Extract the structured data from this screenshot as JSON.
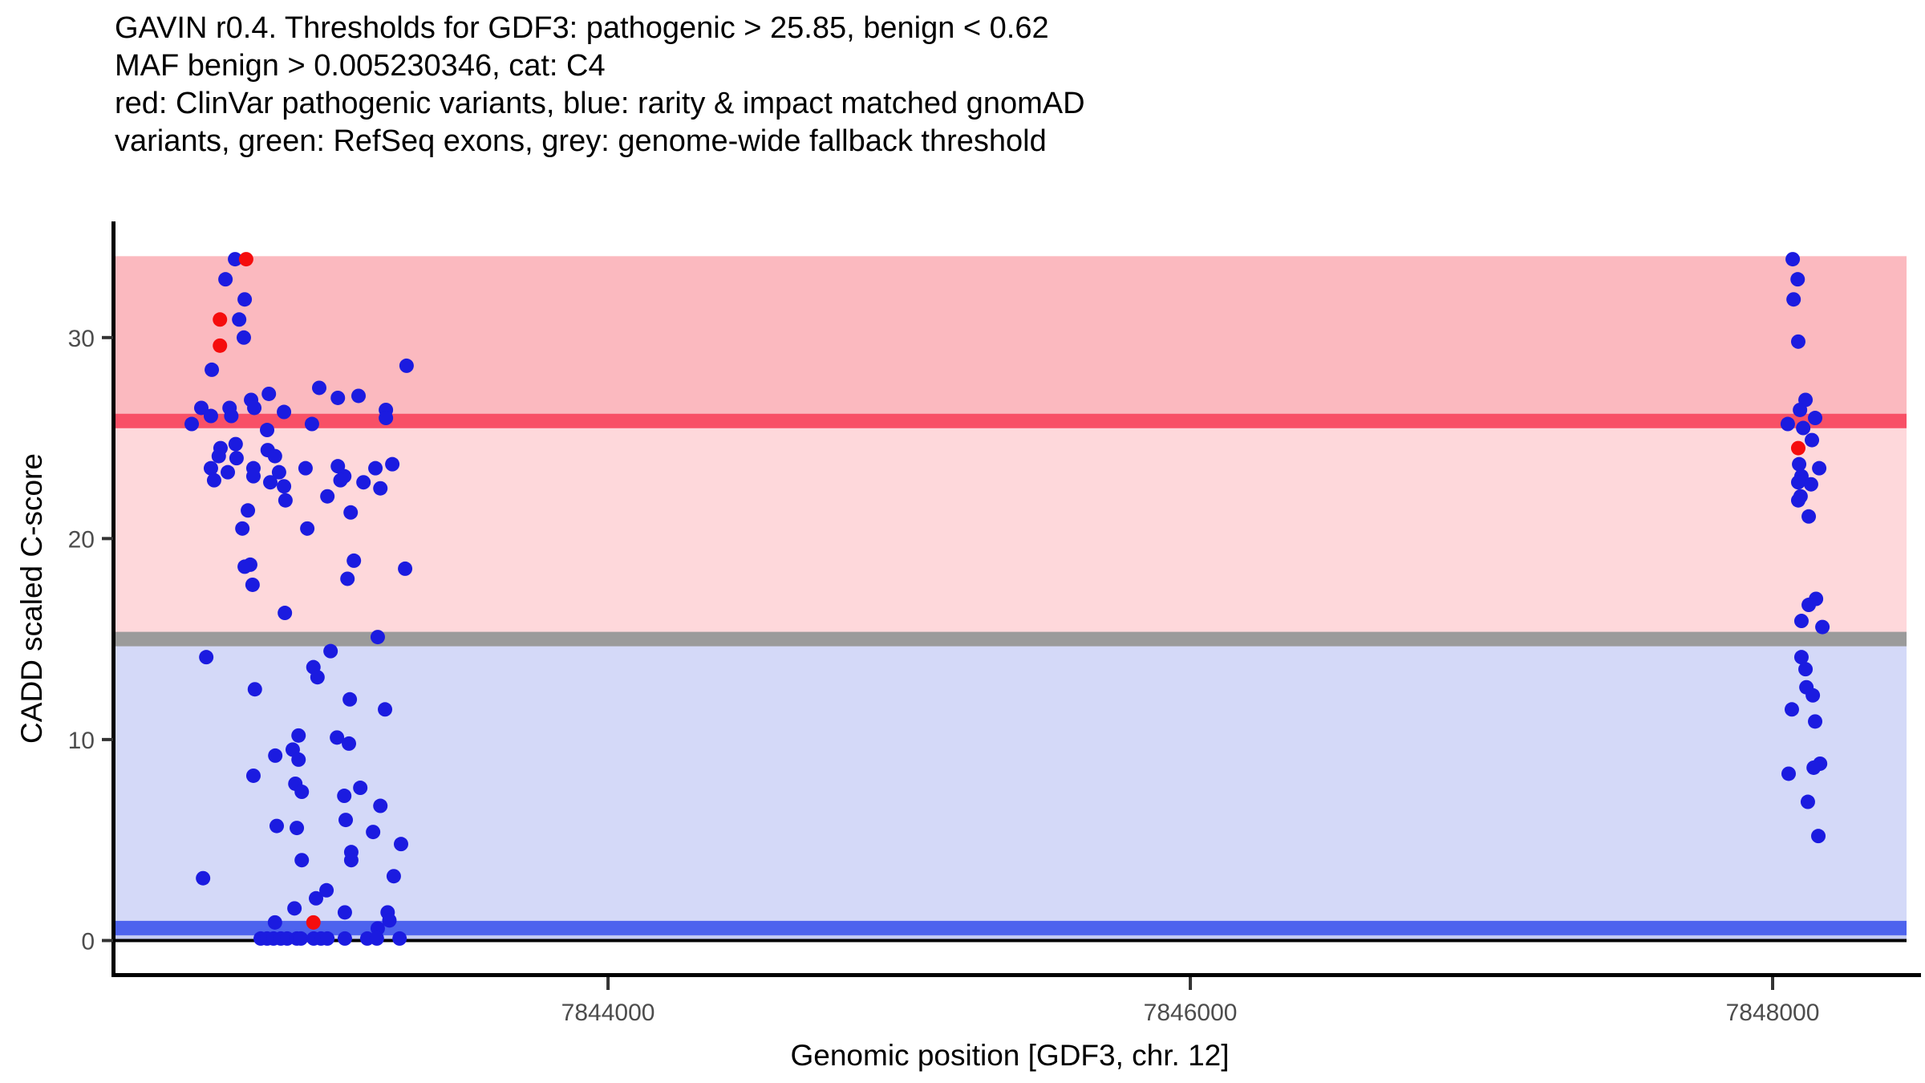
{
  "title": {
    "lines": [
      "GAVIN r0.4. Thresholds for GDF3: pathogenic > 25.85, benign < 0.62",
      "MAF benign > 0.005230346, cat: C4",
      "red: ClinVar pathogenic variants, blue: rarity & impact matched gnomAD",
      "variants, green: RefSeq exons, grey: genome-wide fallback threshold"
    ]
  },
  "thresholds": {
    "tool": "GAVIN r0.4",
    "gene": "GDF3",
    "chromosome": "12",
    "pathogenic_gt": 25.85,
    "benign_lt": 0.62,
    "maf_benign_gt": 0.005230346,
    "category": "C4"
  },
  "colors": {
    "background": "#FFFFFF",
    "pathogenic_band": "#FBB9BF",
    "intermediate_band": "#FED8DB",
    "benign_band": "#D4D9F8",
    "benign_substrip": "#C4CBF4",
    "pathogenic_line": "#F85066",
    "fallback_line": "#9B9B9B",
    "benign_line": "#4D63EE",
    "zero_line": "#000000",
    "clinvar_point": "#F50D0D",
    "gnomad_point": "#1B1BE0",
    "axis": "#000000",
    "tick_mark": "#333333",
    "tick_label": "#4D4D4D"
  },
  "chart_data": {
    "type": "scatter",
    "title": "GAVIN r0.4. Thresholds for GDF3: pathogenic > 25.85, benign < 0.62",
    "xlabel": "Genomic position [GDF3, chr. 12]",
    "ylabel": "CADD scaled C-score",
    "xlim": [
      7842300,
      7848460
    ],
    "ylim": [
      -1.7,
      35.7
    ],
    "x_ticks": [
      7844000,
      7846000,
      7848000
    ],
    "y_ticks": [
      0,
      10,
      20,
      30
    ],
    "grid": false,
    "legend_position": "none",
    "bands": [
      {
        "name": "pathogenic-region",
        "from": 25.85,
        "to": 34.05,
        "color_key": "pathogenic_band"
      },
      {
        "name": "intermediate-region",
        "from": 15.0,
        "to": 25.85,
        "color_key": "intermediate_band"
      },
      {
        "name": "benign-region",
        "from": 0.0,
        "to": 15.0,
        "color_key": "benign_band"
      },
      {
        "name": "benign-substrip",
        "from": 0.0,
        "to": 0.3,
        "color_key": "benign_substrip"
      }
    ],
    "lines": [
      {
        "name": "pathogenic-threshold-line",
        "y": 25.85,
        "thickness": 18,
        "color_key": "pathogenic_line"
      },
      {
        "name": "fallback-threshold-line",
        "y": 15.0,
        "thickness": 18,
        "color_key": "fallback_line"
      },
      {
        "name": "benign-threshold-line",
        "y": 0.62,
        "thickness": 18,
        "color_key": "benign_line"
      },
      {
        "name": "zero-line",
        "y": 0.0,
        "thickness": 4,
        "color_key": "zero_line"
      }
    ],
    "series": [
      {
        "name": "ClinVar pathogenic variants",
        "color_key": "clinvar_point",
        "points": [
          [
            7842757,
            33.9
          ],
          [
            7842667,
            30.9
          ],
          [
            7842667,
            29.6
          ],
          [
            7842988,
            0.9
          ],
          [
            7848088,
            24.5
          ]
        ]
      },
      {
        "name": "rarity & impact matched gnomAD variants",
        "color_key": "gnomad_point",
        "points": [
          [
            7842719,
            33.9
          ],
          [
            7842686,
            32.9
          ],
          [
            7842752,
            31.9
          ],
          [
            7842733,
            30.9
          ],
          [
            7842749,
            30.0
          ],
          [
            7842639,
            28.4
          ],
          [
            7843308,
            28.6
          ],
          [
            7843008,
            27.5
          ],
          [
            7843072,
            27.0
          ],
          [
            7843143,
            27.1
          ],
          [
            7842774,
            26.9
          ],
          [
            7842835,
            27.2
          ],
          [
            7842785,
            26.5
          ],
          [
            7842603,
            26.5
          ],
          [
            7842636,
            26.1
          ],
          [
            7842700,
            26.5
          ],
          [
            7842706,
            26.1
          ],
          [
            7842570,
            25.7
          ],
          [
            7842887,
            26.3
          ],
          [
            7843237,
            26.4
          ],
          [
            7843237,
            26.0
          ],
          [
            7842829,
            25.4
          ],
          [
            7842983,
            25.7
          ],
          [
            7842669,
            24.5
          ],
          [
            7842721,
            24.7
          ],
          [
            7842663,
            24.1
          ],
          [
            7842724,
            24.0
          ],
          [
            7842831,
            24.4
          ],
          [
            7842856,
            24.1
          ],
          [
            7842636,
            23.5
          ],
          [
            7842694,
            23.3
          ],
          [
            7842782,
            23.5
          ],
          [
            7842782,
            23.1
          ],
          [
            7842870,
            23.3
          ],
          [
            7842647,
            22.9
          ],
          [
            7842840,
            22.8
          ],
          [
            7842887,
            22.6
          ],
          [
            7842961,
            23.5
          ],
          [
            7843072,
            23.6
          ],
          [
            7843094,
            23.1
          ],
          [
            7843081,
            22.9
          ],
          [
            7843160,
            22.8
          ],
          [
            7843201,
            23.5
          ],
          [
            7843259,
            23.7
          ],
          [
            7843218,
            22.5
          ],
          [
            7843036,
            22.1
          ],
          [
            7842892,
            21.9
          ],
          [
            7842763,
            21.4
          ],
          [
            7843116,
            21.3
          ],
          [
            7842744,
            20.5
          ],
          [
            7842967,
            20.5
          ],
          [
            7843127,
            18.9
          ],
          [
            7842771,
            18.7
          ],
          [
            7842752,
            18.6
          ],
          [
            7843105,
            18.0
          ],
          [
            7843303,
            18.5
          ],
          [
            7842779,
            17.7
          ],
          [
            7842890,
            16.3
          ],
          [
            7843209,
            15.1
          ],
          [
            7842620,
            14.1
          ],
          [
            7843047,
            14.4
          ],
          [
            7842988,
            13.6
          ],
          [
            7843002,
            13.1
          ],
          [
            7842787,
            12.5
          ],
          [
            7843113,
            12.0
          ],
          [
            7843234,
            11.5
          ],
          [
            7842937,
            10.2
          ],
          [
            7843069,
            10.1
          ],
          [
            7843110,
            9.8
          ],
          [
            7842857,
            9.2
          ],
          [
            7842917,
            9.5
          ],
          [
            7842937,
            9.0
          ],
          [
            7842782,
            8.2
          ],
          [
            7842926,
            7.8
          ],
          [
            7842948,
            7.4
          ],
          [
            7843149,
            7.6
          ],
          [
            7843094,
            7.2
          ],
          [
            7843218,
            6.7
          ],
          [
            7843099,
            6.0
          ],
          [
            7842862,
            5.7
          ],
          [
            7842931,
            5.6
          ],
          [
            7843193,
            5.4
          ],
          [
            7843289,
            4.8
          ],
          [
            7843118,
            4.4
          ],
          [
            7843118,
            4.0
          ],
          [
            7842948,
            4.0
          ],
          [
            7842609,
            3.1
          ],
          [
            7843264,
            3.2
          ],
          [
            7843033,
            2.5
          ],
          [
            7842997,
            2.1
          ],
          [
            7842923,
            1.6
          ],
          [
            7843096,
            1.4
          ],
          [
            7843243,
            1.4
          ],
          [
            7843249,
            1.0
          ],
          [
            7842856,
            0.9
          ],
          [
            7843209,
            0.6
          ],
          [
            7842807,
            0.1
          ],
          [
            7842829,
            0.1
          ],
          [
            7842851,
            0.1
          ],
          [
            7842876,
            0.1
          ],
          [
            7842898,
            0.1
          ],
          [
            7842931,
            0.1
          ],
          [
            7842945,
            0.1
          ],
          [
            7842989,
            0.1
          ],
          [
            7843014,
            0.1
          ],
          [
            7843036,
            0.1
          ],
          [
            7843096,
            0.1
          ],
          [
            7843173,
            0.1
          ],
          [
            7843206,
            0.1
          ],
          [
            7843284,
            0.1
          ],
          [
            7848069,
            33.9
          ],
          [
            7848086,
            32.9
          ],
          [
            7848072,
            31.9
          ],
          [
            7848088,
            29.8
          ],
          [
            7848113,
            26.9
          ],
          [
            7848094,
            26.4
          ],
          [
            7848146,
            26.0
          ],
          [
            7848052,
            25.7
          ],
          [
            7848105,
            25.5
          ],
          [
            7848135,
            24.9
          ],
          [
            7848091,
            23.7
          ],
          [
            7848160,
            23.5
          ],
          [
            7848099,
            23.1
          ],
          [
            7848088,
            22.8
          ],
          [
            7848132,
            22.7
          ],
          [
            7848096,
            22.1
          ],
          [
            7848088,
            21.9
          ],
          [
            7848124,
            21.1
          ],
          [
            7848149,
            17.0
          ],
          [
            7848124,
            16.7
          ],
          [
            7848099,
            15.9
          ],
          [
            7848171,
            15.6
          ],
          [
            7848099,
            14.1
          ],
          [
            7848113,
            13.5
          ],
          [
            7848116,
            12.6
          ],
          [
            7848138,
            12.2
          ],
          [
            7848066,
            11.5
          ],
          [
            7848146,
            10.9
          ],
          [
            7848163,
            8.8
          ],
          [
            7848141,
            8.6
          ],
          [
            7848055,
            8.3
          ],
          [
            7848121,
            6.9
          ],
          [
            7848157,
            5.2
          ]
        ]
      }
    ]
  }
}
